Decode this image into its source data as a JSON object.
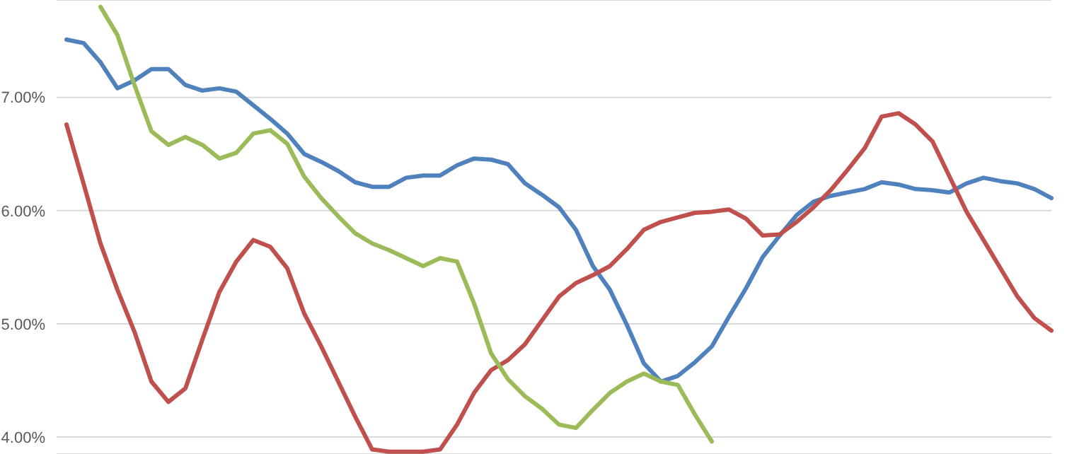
{
  "chart_data": {
    "type": "line",
    "categories": [
      null,
      null,
      null,
      null,
      null,
      null,
      null,
      null,
      null,
      null,
      null,
      null,
      null,
      null,
      null,
      null,
      null,
      null,
      null,
      null,
      null,
      null,
      null,
      null,
      null,
      null,
      null,
      null,
      null,
      null,
      null,
      null,
      null,
      null,
      null,
      null,
      null,
      null,
      null,
      null,
      null,
      null,
      null,
      null,
      null,
      null,
      null,
      null,
      null,
      null,
      null,
      null,
      null,
      null,
      null,
      null,
      null,
      null,
      null
    ],
    "series": [
      {
        "color": "#4f81bd",
        "values": [
          7.51,
          7.48,
          7.31,
          7.08,
          7.15,
          7.25,
          7.25,
          7.11,
          7.06,
          7.08,
          7.05,
          6.93,
          6.81,
          6.68,
          6.5,
          6.43,
          6.35,
          6.25,
          6.21,
          6.21,
          6.29,
          6.31,
          6.31,
          6.4,
          6.46,
          6.45,
          6.41,
          6.24,
          6.14,
          6.03,
          5.83,
          5.51,
          5.3,
          4.99,
          4.65,
          4.49,
          4.54,
          4.66,
          4.8,
          5.06,
          5.31,
          5.59,
          5.78,
          5.96,
          6.08,
          6.13,
          6.16,
          6.19,
          6.25,
          6.23,
          6.19,
          6.18,
          6.16,
          6.24,
          6.29,
          6.26,
          6.24,
          6.19,
          6.11
        ]
      },
      {
        "color": "#c0504d",
        "values": [
          6.76,
          6.24,
          5.71,
          5.3,
          4.93,
          4.49,
          4.31,
          4.43,
          4.86,
          5.28,
          5.55,
          5.74,
          5.68,
          5.49,
          5.09,
          4.8,
          4.49,
          4.18,
          3.89,
          3.87,
          3.87,
          3.87,
          3.89,
          4.11,
          4.39,
          4.59,
          4.68,
          4.82,
          5.03,
          5.24,
          5.36,
          5.43,
          5.51,
          5.66,
          5.83,
          5.9,
          5.94,
          5.98,
          5.99,
          6.01,
          5.93,
          5.78,
          5.79,
          5.9,
          6.03,
          6.18,
          6.36,
          6.55,
          6.83,
          6.86,
          6.76,
          6.61,
          6.3,
          5.99,
          5.74,
          5.49,
          5.24,
          5.05,
          4.94
        ]
      },
      {
        "color": "#9bbb59",
        "values": [
          null,
          null,
          7.8,
          7.55,
          7.11,
          6.7,
          6.58,
          6.65,
          6.58,
          6.46,
          6.51,
          6.68,
          6.71,
          6.59,
          6.3,
          6.11,
          5.95,
          5.8,
          5.71,
          5.65,
          5.58,
          5.51,
          5.58,
          5.55,
          5.18,
          4.74,
          4.51,
          4.36,
          4.25,
          4.11,
          4.08,
          4.24,
          4.39,
          4.49,
          4.56,
          4.49,
          4.46,
          4.2,
          3.96,
          null,
          null,
          null,
          null,
          null,
          null,
          null,
          null,
          null,
          null,
          null,
          null,
          null,
          null,
          null,
          null,
          null,
          null,
          null,
          null
        ]
      }
    ],
    "ylim": [
      3.85,
      7.86
    ],
    "yticks": [
      {
        "value": 4,
        "label": "4.00%"
      },
      {
        "value": 5,
        "label": "5.00%"
      },
      {
        "value": 6,
        "label": "6.00%"
      },
      {
        "value": 7,
        "label": "7.00%"
      }
    ],
    "grid": "y",
    "tick_labels": "y",
    "marker": "none",
    "line_style": "solid"
  }
}
